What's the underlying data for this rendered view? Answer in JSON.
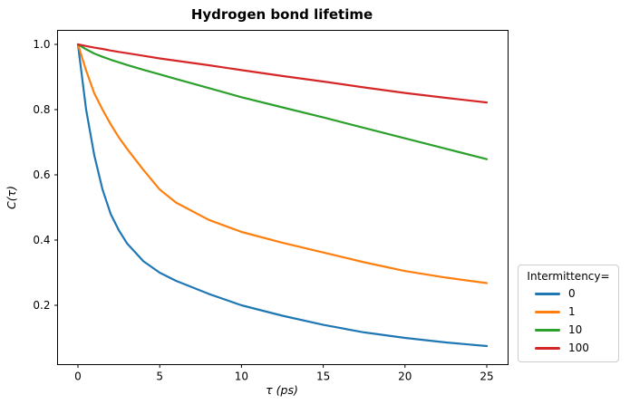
{
  "figure": {
    "background": "#ffffff"
  },
  "legend": {
    "title": "Intermittency="
  },
  "chart_data": {
    "type": "line",
    "title": "Hydrogen bond lifetime",
    "xlabel": "τ (ps)",
    "ylabel": "C(τ)",
    "xlim": [
      -1.25,
      26.25
    ],
    "ylim": [
      0.02,
      1.045
    ],
    "grid": false,
    "legend_title": "Intermittency=",
    "legend_position": "outside-right-bottom",
    "x_ticks": [
      0,
      5,
      10,
      15,
      20,
      25
    ],
    "x_tick_labels": [
      "0",
      "5",
      "10",
      "15",
      "20",
      "25"
    ],
    "y_ticks": [
      0.2,
      0.4,
      0.6,
      0.8,
      1.0
    ],
    "y_tick_labels": [
      "0.2",
      "0.4",
      "0.6",
      "0.8",
      "1.0"
    ],
    "x": [
      0,
      0.5,
      1,
      1.5,
      2,
      2.5,
      3,
      4,
      5,
      6,
      8,
      10,
      12.5,
      15,
      17.5,
      20,
      22.5,
      25
    ],
    "series": [
      {
        "name": "0",
        "color": "#1f77b4",
        "values": [
          1.0,
          0.8,
          0.66,
          0.555,
          0.48,
          0.43,
          0.39,
          0.335,
          0.3,
          0.275,
          0.235,
          0.2,
          0.168,
          0.14,
          0.117,
          0.1,
          0.086,
          0.075
        ]
      },
      {
        "name": "1",
        "color": "#ff7f0e",
        "values": [
          1.0,
          0.92,
          0.85,
          0.8,
          0.755,
          0.715,
          0.68,
          0.615,
          0.555,
          0.515,
          0.462,
          0.425,
          0.392,
          0.362,
          0.332,
          0.305,
          0.285,
          0.268
        ]
      },
      {
        "name": "10",
        "color": "#2ca02c",
        "values": [
          1.0,
          0.985,
          0.972,
          0.962,
          0.953,
          0.945,
          0.937,
          0.922,
          0.908,
          0.894,
          0.866,
          0.838,
          0.807,
          0.776,
          0.744,
          0.712,
          0.68,
          0.648
        ]
      },
      {
        "name": "100",
        "color": "#d62728",
        "values": [
          1.0,
          0.995,
          0.99,
          0.986,
          0.981,
          0.977,
          0.973,
          0.965,
          0.957,
          0.95,
          0.936,
          0.921,
          0.903,
          0.886,
          0.868,
          0.851,
          0.836,
          0.822
        ]
      }
    ]
  }
}
